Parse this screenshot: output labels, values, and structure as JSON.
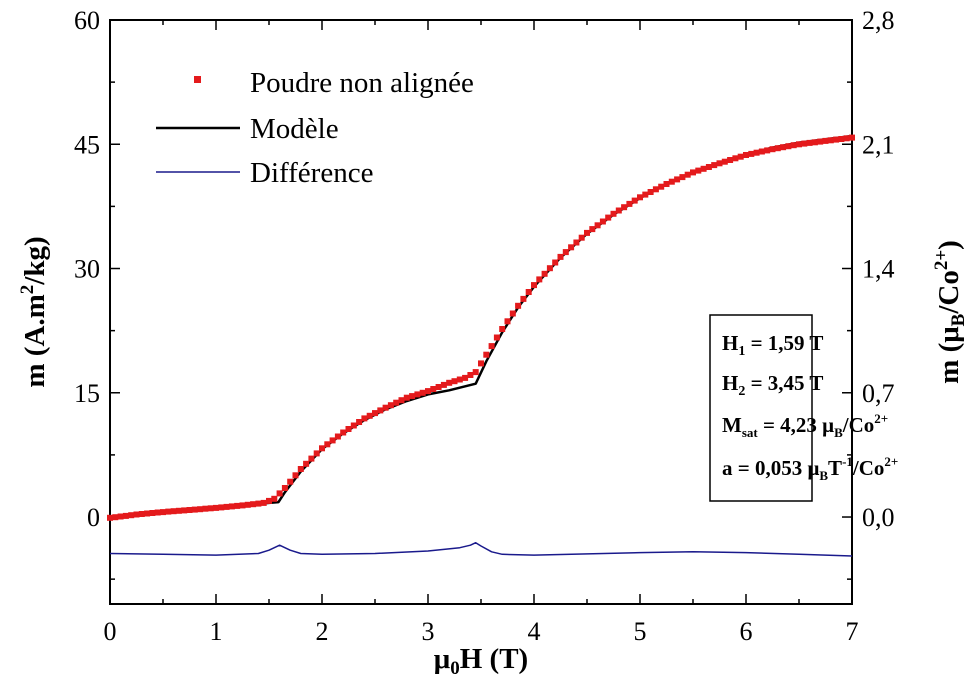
{
  "chart_data": {
    "type": "line",
    "xlabel": {
      "base": "μ",
      "sub": "0",
      "rest": "H (T)"
    },
    "ylabel": {
      "pre": "m (A.m",
      "sup": "2",
      "post": "/kg)"
    },
    "y2label": {
      "pre": "m (μ",
      "sub": "B",
      "mid": "/Co",
      "sup": "2+",
      "post": ")"
    },
    "xlim": [
      0,
      7
    ],
    "ylim": [
      -10.5,
      60
    ],
    "y2lim": [
      -0.49,
      2.8
    ],
    "xticks": [
      0,
      1,
      2,
      3,
      4,
      5,
      6,
      7
    ],
    "xtick_labels": [
      "0",
      "1",
      "2",
      "3",
      "4",
      "5",
      "6",
      "7"
    ],
    "yticks": [
      0,
      15,
      30,
      45,
      60
    ],
    "ytick_labels": [
      "0",
      "15",
      "30",
      "45",
      "60"
    ],
    "y2ticks": [
      0,
      0.7,
      1.4,
      2.1,
      2.8
    ],
    "y2tick_labels": [
      "0,0",
      "0,7",
      "1,4",
      "2,1",
      "2,8"
    ],
    "grid": false,
    "legend_position": "top-left",
    "series": [
      {
        "name": "Poudre non alignée",
        "style": "markers",
        "color": "#e41a1c",
        "x": [
          0,
          0.25,
          0.5,
          0.75,
          1.0,
          1.25,
          1.45,
          1.55,
          1.65,
          1.8,
          2.0,
          2.2,
          2.4,
          2.6,
          2.8,
          3.0,
          3.2,
          3.35,
          3.45,
          3.55,
          3.7,
          3.85,
          4.0,
          4.25,
          4.5,
          4.75,
          5.0,
          5.25,
          5.5,
          5.75,
          6.0,
          6.25,
          6.5,
          6.75,
          7.0
        ],
        "y": [
          -0.1,
          0.3,
          0.6,
          0.85,
          1.1,
          1.4,
          1.7,
          2.2,
          3.5,
          5.8,
          8.3,
          10.2,
          11.9,
          13.2,
          14.4,
          15.2,
          16.2,
          16.8,
          17.5,
          19.6,
          22.7,
          25.5,
          28.0,
          31.4,
          34.3,
          36.6,
          38.6,
          40.2,
          41.6,
          42.7,
          43.7,
          44.4,
          45.0,
          45.4,
          45.8
        ]
      },
      {
        "name": "Modèle",
        "style": "line",
        "color": "#000000",
        "x": [
          0,
          0.5,
          1.0,
          1.3,
          1.59,
          1.65,
          1.8,
          2.0,
          2.2,
          2.4,
          2.6,
          2.8,
          3.0,
          3.2,
          3.45,
          3.55,
          3.7,
          3.85,
          4.0,
          4.25,
          4.5,
          4.75,
          5.0,
          5.25,
          5.5,
          5.75,
          6.0,
          6.25,
          6.5,
          6.75,
          7.0
        ],
        "y": [
          0.0,
          0.6,
          1.1,
          1.5,
          1.8,
          3.0,
          5.5,
          8.2,
          10.1,
          11.7,
          13.0,
          14.0,
          14.8,
          15.3,
          16.1,
          18.8,
          22.3,
          25.3,
          27.8,
          31.3,
          34.2,
          36.5,
          38.5,
          40.2,
          41.6,
          42.8,
          43.8,
          44.6,
          45.2,
          45.6,
          46.0
        ]
      },
      {
        "name": "Différence",
        "style": "line",
        "color": "#1a1a8c",
        "x": [
          0,
          0.5,
          1.0,
          1.4,
          1.5,
          1.6,
          1.7,
          1.8,
          2.0,
          2.5,
          3.0,
          3.3,
          3.4,
          3.45,
          3.5,
          3.6,
          3.7,
          4.0,
          5.0,
          5.5,
          6.0,
          6.5,
          7.0
        ],
        "y": [
          -4.4,
          -4.5,
          -4.6,
          -4.4,
          -4.0,
          -3.4,
          -4.0,
          -4.4,
          -4.5,
          -4.4,
          -4.1,
          -3.7,
          -3.4,
          -3.1,
          -3.5,
          -4.2,
          -4.5,
          -4.6,
          -4.3,
          -4.2,
          -4.3,
          -4.5,
          -4.7
        ]
      }
    ],
    "annotation": {
      "lines": [
        {
          "pre": "H",
          "sub": "1",
          "post": " = 1,59 T"
        },
        {
          "pre": "H",
          "sub": "2",
          "post": " = 3,45 T"
        },
        {
          "pre": "M",
          "sub": "sat",
          "post": " = 4,23 μ",
          "sub2": "B",
          "post2": "/Co",
          "sup": "2+"
        },
        {
          "pre": "a = 0,053 μ",
          "sub": "B",
          "post": "T",
          "sup1": "-1",
          "post2": "/Co",
          "sup": "2+"
        }
      ]
    }
  }
}
